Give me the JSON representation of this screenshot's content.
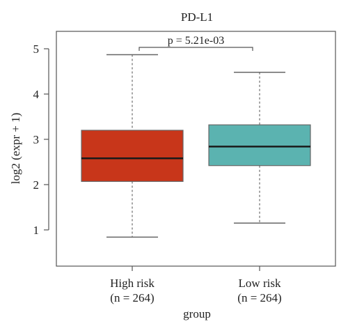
{
  "chart_data": {
    "type": "box",
    "title": "PD-L1",
    "xlabel": "group",
    "ylabel": "log2 (expr + 1)",
    "ylim": [
      0.2,
      5.5
    ],
    "yticks": [
      1,
      2,
      3,
      4,
      5
    ],
    "grid": false,
    "legend": "none",
    "groups": [
      {
        "label": "High risk",
        "n_label": "(n = 264)",
        "color": "#c8361a",
        "stats": {
          "whisker_low": 0.84,
          "q1": 2.07,
          "median": 2.58,
          "q3": 3.2,
          "whisker_high": 4.87
        }
      },
      {
        "label": "Low risk",
        "n_label": "(n = 264)",
        "color": "#5bb3b0",
        "stats": {
          "whisker_low": 1.15,
          "q1": 2.42,
          "median": 2.84,
          "q3": 3.32,
          "whisker_high": 4.48
        }
      }
    ],
    "annotation": {
      "text": "p = 5.21e-03",
      "between": [
        0,
        1
      ]
    }
  }
}
